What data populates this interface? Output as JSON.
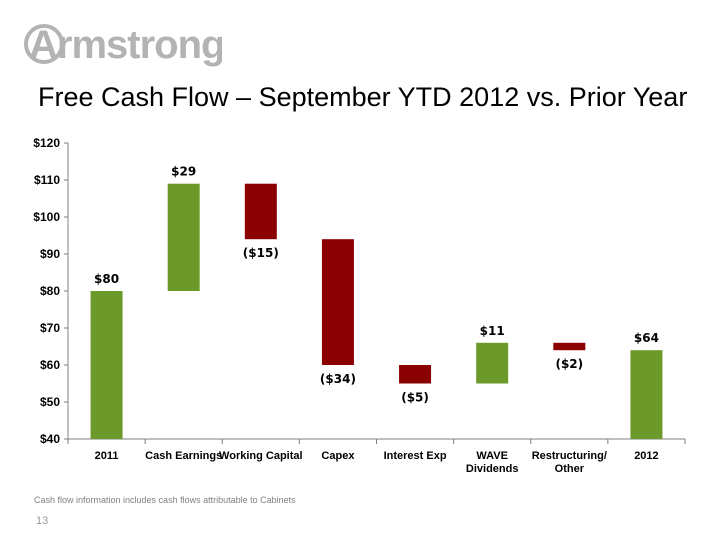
{
  "logo_text": "Armstrong",
  "title": "Free Cash Flow – September YTD 2012 vs. Prior Year",
  "footnote": "Cash flow information includes cash flows attributable to Cabinets",
  "page_number": "13",
  "colors": {
    "increase": "#6b9a2a",
    "decrease": "#8b0000",
    "total": "#6b9a2a",
    "logo": "#b3b3b3"
  },
  "chart_data": {
    "type": "bar",
    "subtype": "waterfall",
    "title": "",
    "xlabel": "",
    "ylabel": "",
    "ylim": [
      40,
      120
    ],
    "yticks": [
      40,
      50,
      60,
      70,
      80,
      90,
      100,
      110,
      120
    ],
    "ytick_labels": [
      "$40",
      "$50",
      "$60",
      "$70",
      "$80",
      "$90",
      "$100",
      "$110",
      "$120"
    ],
    "grid": false,
    "legend": "none",
    "bars": [
      {
        "category": [
          "2011"
        ],
        "kind": "total",
        "start": 40,
        "end": 80,
        "label": "$80"
      },
      {
        "category": [
          "Cash Earnings"
        ],
        "kind": "increase",
        "start": 80,
        "end": 109,
        "label": "$29"
      },
      {
        "category": [
          "Working Capital"
        ],
        "kind": "decrease",
        "start": 109,
        "end": 94,
        "label": "($15)"
      },
      {
        "category": [
          "Capex"
        ],
        "kind": "decrease",
        "start": 94,
        "end": 60,
        "label": "($34)"
      },
      {
        "category": [
          "Interest Exp"
        ],
        "kind": "decrease",
        "start": 60,
        "end": 55,
        "label": "($5)"
      },
      {
        "category": [
          "WAVE",
          "Dividends"
        ],
        "kind": "increase",
        "start": 55,
        "end": 66,
        "label": "$11"
      },
      {
        "category": [
          "Restructuring/",
          "Other"
        ],
        "kind": "decrease",
        "start": 66,
        "end": 64,
        "label": "($2)"
      },
      {
        "category": [
          "2012"
        ],
        "kind": "total",
        "start": 40,
        "end": 64,
        "label": "$64"
      }
    ]
  }
}
